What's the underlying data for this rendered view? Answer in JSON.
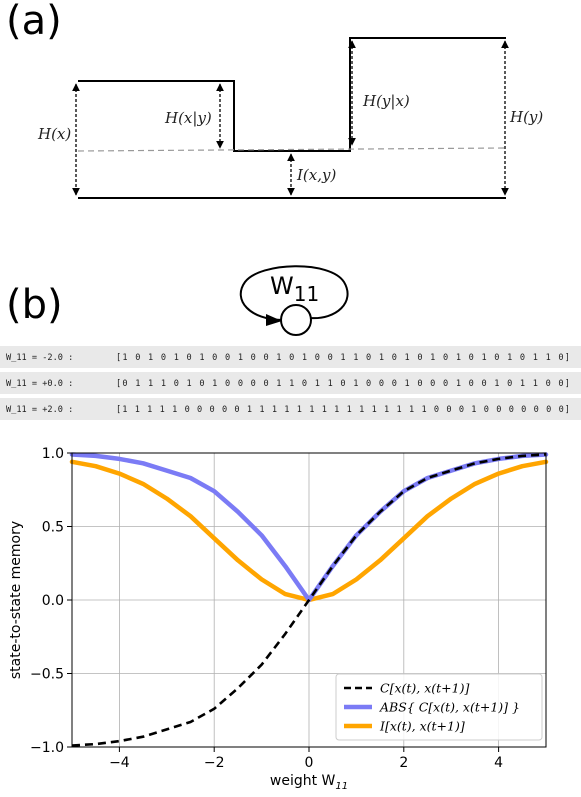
{
  "panel_a": {
    "label": "(a)",
    "labels": {
      "hx": "H(x)",
      "hx_given_y": "H(x|y)",
      "hy_given_x": "H(y|x)",
      "hy": "H(y)",
      "ixy": "I(x,y)"
    }
  },
  "panel_b": {
    "label": "(b)",
    "node_label": "W",
    "node_sub": "11",
    "sequences": [
      {
        "label": "W_11 = -2.0 :",
        "bits": "[1 0 1 0 1 0 1 0 0 1 0 0 1 0 1 0 0 1 1 0 1 0 1 0 1 0 1 0 1 0 1 0 1 1 0]"
      },
      {
        "label": "W_11 = +0.0 :",
        "bits": "[0 1 1 1 0 1 0 1 0 0 0 0 1 1 0 1 1 0 1 0 0 0 1 0 0 0 1 0 0 1 0 1 1 0 0]"
      },
      {
        "label": "W_11 = +2.0 :",
        "bits": "[1 1 1 1 1 0 0 0 0 0 1 1 1 1 1 1 1 1 1 1 1 1 1 1 1 0 0 0 1 0 0 0 0 0 0 0]"
      }
    ]
  },
  "chart_data": {
    "type": "line",
    "xlabel": "weight W",
    "xlabel_sub": "11",
    "ylabel": "state-to-state memory",
    "xlim": [
      -5,
      5
    ],
    "ylim": [
      -1.0,
      1.0
    ],
    "xticks": [
      -4,
      -2,
      0,
      2,
      4
    ],
    "xtick_labels": [
      "−4",
      "−2",
      "0",
      "2",
      "4"
    ],
    "yticks": [
      -1.0,
      -0.5,
      0.0,
      0.5,
      1.0
    ],
    "ytick_labels": [
      "−1.0",
      "−0.5",
      "0.0",
      "0.5",
      "1.0"
    ],
    "grid": true,
    "legend_position": "bottom-right",
    "x": [
      -5,
      -4.5,
      -4,
      -3.5,
      -3,
      -2.5,
      -2,
      -1.5,
      -1,
      -0.5,
      0,
      0.5,
      1,
      1.5,
      2,
      2.5,
      3,
      3.5,
      4,
      4.5,
      5
    ],
    "series": [
      {
        "name": "C[x(t), x(t+1)]",
        "color": "#000000",
        "style": "dashed",
        "values": [
          -0.99,
          -0.98,
          -0.96,
          -0.93,
          -0.88,
          -0.83,
          -0.74,
          -0.6,
          -0.44,
          -0.23,
          0.0,
          0.23,
          0.44,
          0.6,
          0.74,
          0.83,
          0.88,
          0.93,
          0.96,
          0.98,
          0.99
        ]
      },
      {
        "name": "ABS{ C[x(t), x(t+1)] }",
        "color": "#7b7bf5",
        "style": "solid",
        "values": [
          0.99,
          0.98,
          0.96,
          0.93,
          0.88,
          0.83,
          0.74,
          0.6,
          0.44,
          0.23,
          0.0,
          0.23,
          0.44,
          0.6,
          0.74,
          0.83,
          0.88,
          0.93,
          0.96,
          0.98,
          0.99
        ]
      },
      {
        "name": "I[x(t), x(t+1)]",
        "color": "#ffa500",
        "style": "solid",
        "values": [
          0.94,
          0.91,
          0.86,
          0.79,
          0.69,
          0.57,
          0.42,
          0.27,
          0.14,
          0.04,
          0.0,
          0.04,
          0.14,
          0.27,
          0.42,
          0.57,
          0.69,
          0.79,
          0.86,
          0.91,
          0.94
        ]
      }
    ]
  }
}
